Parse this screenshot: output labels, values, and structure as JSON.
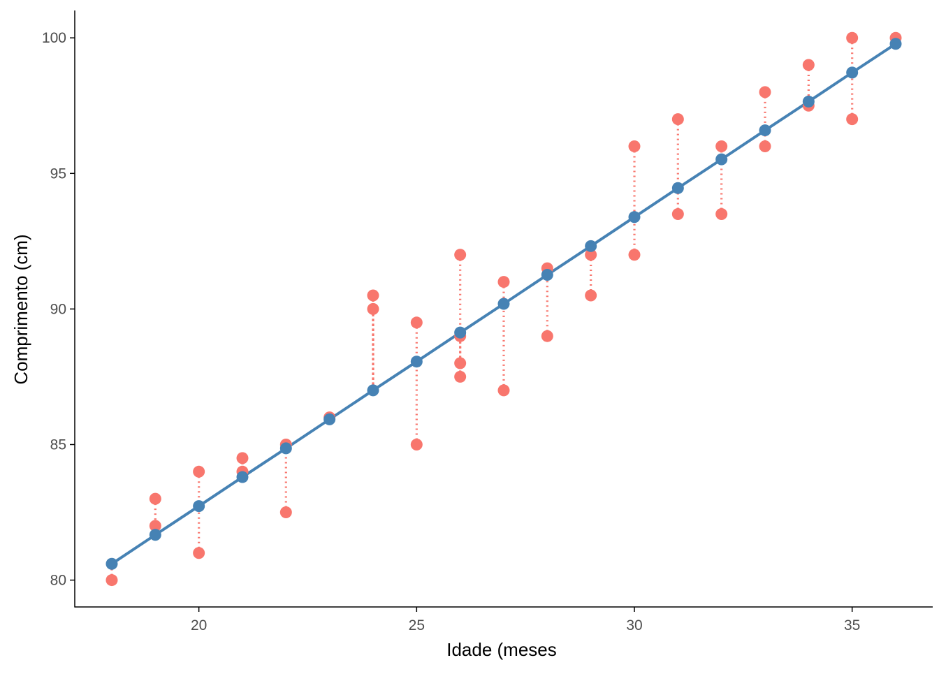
{
  "chart_data": {
    "type": "scatter",
    "title": "",
    "xlabel": "Idade (meses",
    "ylabel": "Comprimento (cm)",
    "xlim": [
      17.15,
      36.85
    ],
    "ylim": [
      79.01,
      101.01
    ],
    "x_ticks": [
      20,
      25,
      30,
      35
    ],
    "y_ticks": [
      80,
      85,
      90,
      95,
      100
    ],
    "grid": false,
    "legend": "none",
    "colors": {
      "observed": "#F8766D",
      "fitted": "#4682B4",
      "axis": "#000000",
      "tick_label": "#4d4d4d"
    },
    "series": [
      {
        "kind": "observed-points",
        "x": [
          18,
          19,
          19,
          20,
          20,
          21,
          21,
          22,
          22,
          23,
          24,
          24,
          25,
          25,
          26,
          26,
          26,
          26,
          27,
          27,
          28,
          28,
          29,
          29,
          30,
          30,
          31,
          31,
          32,
          32,
          33,
          33,
          34,
          34,
          35,
          35,
          36
        ],
        "y": [
          80,
          83,
          82,
          84,
          81,
          84.5,
          84,
          85,
          82.5,
          86,
          90.5,
          90,
          89.5,
          85,
          92,
          89,
          88,
          87.5,
          91,
          87,
          91.5,
          89,
          92,
          90.5,
          96,
          92,
          97,
          93.5,
          96,
          93.5,
          98,
          96,
          99,
          97.5,
          100,
          97,
          100
        ]
      },
      {
        "kind": "fitted-line",
        "x": [
          18,
          19,
          20,
          21,
          22,
          23,
          24,
          25,
          26,
          27,
          28,
          29,
          30,
          31,
          32,
          33,
          34,
          35,
          36
        ],
        "y": [
          80.6,
          81.67,
          82.73,
          83.8,
          84.86,
          85.93,
          87.0,
          88.06,
          89.13,
          90.19,
          91.26,
          92.32,
          93.39,
          94.46,
          95.52,
          96.59,
          97.65,
          98.72,
          99.78
        ]
      }
    ]
  }
}
